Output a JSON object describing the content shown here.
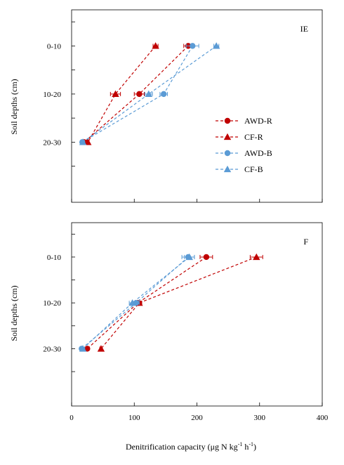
{
  "chart_data": {
    "type": "line",
    "xlabel": "Denitrification capacity (μg N kg",
    "xlabel_sup1": "-1",
    "xlabel_mid": " h",
    "xlabel_sup2": "-1",
    "xlabel_end": ")",
    "ylabel": "Soil depths (cm)",
    "xlim": [
      0,
      400
    ],
    "xticks": [
      "0",
      "100",
      "200",
      "300",
      "400"
    ],
    "categories": [
      "0-10",
      "10-20",
      "20-30"
    ],
    "colors": {
      "red": "#c00000",
      "blue": "#5b9bd5"
    },
    "legend": {
      "placement": "right",
      "entries": [
        {
          "name": "AWD-R",
          "color": "#c00000",
          "marker": "circle"
        },
        {
          "name": "CF-R",
          "color": "#c00000",
          "marker": "triangle"
        },
        {
          "name": "AWD-B",
          "color": "#5b9bd5",
          "marker": "circle"
        },
        {
          "name": "CF-B",
          "color": "#5b9bd5",
          "marker": "triangle"
        }
      ]
    },
    "panels": [
      {
        "label": "IE",
        "series": [
          {
            "name": "AWD-R",
            "color": "#c00000",
            "marker": "circle",
            "values": [
              186,
              108,
              20
            ],
            "errors": [
              7,
              8,
              3
            ]
          },
          {
            "name": "CF-R",
            "color": "#c00000",
            "marker": "triangle",
            "values": [
              134,
              70,
              26
            ],
            "errors": [
              4,
              8,
              2
            ]
          },
          {
            "name": "AWD-B",
            "color": "#5b9bd5",
            "marker": "circle",
            "values": [
              193,
              147,
              17
            ],
            "errors": [
              10,
              6,
              2
            ]
          },
          {
            "name": "CF-B",
            "color": "#5b9bd5",
            "marker": "triangle",
            "values": [
              231,
              123,
              18
            ],
            "errors": [
              4,
              6,
              2
            ]
          }
        ]
      },
      {
        "label": "F",
        "series": [
          {
            "name": "AWD-R",
            "color": "#c00000",
            "marker": "circle",
            "values": [
              215,
              106,
              25
            ],
            "errors": [
              10,
              5,
              3
            ]
          },
          {
            "name": "CF-R",
            "color": "#c00000",
            "marker": "triangle",
            "values": [
              295,
              108,
              47
            ],
            "errors": [
              10,
              4,
              2
            ]
          },
          {
            "name": "AWD-B",
            "color": "#5b9bd5",
            "marker": "circle",
            "values": [
              186,
              103,
              16
            ],
            "errors": [
              10,
              5,
              3
            ]
          },
          {
            "name": "CF-B",
            "color": "#5b9bd5",
            "marker": "triangle",
            "values": [
              188,
              97,
              18
            ],
            "errors": [
              8,
              5,
              3
            ]
          }
        ]
      }
    ]
  }
}
